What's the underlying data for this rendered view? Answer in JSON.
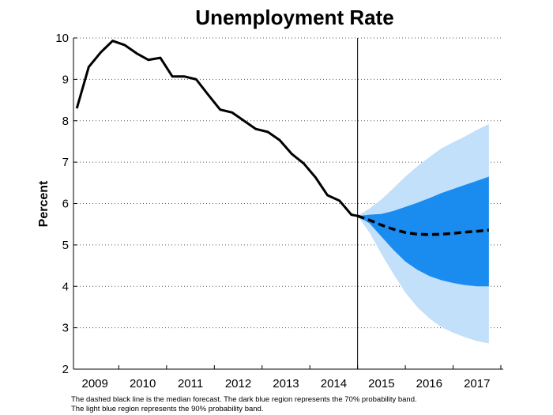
{
  "chart_data": {
    "type": "line",
    "title": "Unemployment Rate",
    "xlabel": "",
    "ylabel": "Percent",
    "xlim": [
      2008.55,
      2017.55
    ],
    "ylim": [
      2,
      10
    ],
    "yticks": [
      2,
      3,
      4,
      5,
      6,
      7,
      8,
      9,
      10
    ],
    "xtick_labels": [
      "2009",
      "2010",
      "2011",
      "2012",
      "2013",
      "2014",
      "2015",
      "2016",
      "2017"
    ],
    "xtick_positions": [
      2009,
      2010,
      2011,
      2012,
      2013,
      2014,
      2015,
      2016,
      2017
    ],
    "forecast_start": 2014.5,
    "grid": "horizontal dotted",
    "colors": {
      "history": "#000000",
      "band70": "#1a8cf0",
      "band90": "#c2e0fa"
    },
    "history": {
      "x": [
        2008.62,
        2008.87,
        2009.12,
        2009.37,
        2009.62,
        2009.87,
        2010.12,
        2010.37,
        2010.62,
        2010.87,
        2011.12,
        2011.37,
        2011.62,
        2011.87,
        2012.12,
        2012.37,
        2012.62,
        2012.87,
        2013.12,
        2013.37,
        2013.62,
        2013.87,
        2014.12,
        2014.37,
        2014.5
      ],
      "y": [
        8.3,
        9.3,
        9.65,
        9.93,
        9.83,
        9.63,
        9.47,
        9.52,
        9.07,
        9.07,
        9.0,
        8.63,
        8.27,
        8.2,
        8.0,
        7.8,
        7.73,
        7.53,
        7.2,
        6.97,
        6.63,
        6.2,
        6.07,
        5.73,
        5.7
      ]
    },
    "median_forecast": {
      "x": [
        2014.5,
        2014.75,
        2015.0,
        2015.25,
        2015.5,
        2015.75,
        2016.0,
        2016.25,
        2016.5,
        2016.75,
        2017.0,
        2017.25
      ],
      "y": [
        5.7,
        5.6,
        5.48,
        5.38,
        5.3,
        5.26,
        5.25,
        5.26,
        5.28,
        5.31,
        5.33,
        5.36
      ]
    },
    "band_70": {
      "x": [
        2014.5,
        2014.75,
        2015.0,
        2015.25,
        2015.5,
        2015.75,
        2016.0,
        2016.25,
        2016.5,
        2016.75,
        2017.0,
        2017.25
      ],
      "low": [
        5.7,
        5.52,
        5.2,
        4.88,
        4.6,
        4.4,
        4.25,
        4.15,
        4.08,
        4.03,
        4.0,
        4.0
      ],
      "high": [
        5.7,
        5.73,
        5.75,
        5.82,
        5.92,
        6.02,
        6.13,
        6.25,
        6.35,
        6.45,
        6.55,
        6.65
      ]
    },
    "band_90": {
      "x": [
        2014.5,
        2014.75,
        2015.0,
        2015.25,
        2015.5,
        2015.75,
        2016.0,
        2016.25,
        2016.5,
        2016.75,
        2017.0,
        2017.25
      ],
      "low": [
        5.7,
        5.3,
        4.78,
        4.3,
        3.85,
        3.5,
        3.23,
        3.02,
        2.88,
        2.77,
        2.68,
        2.62
      ],
      "high": [
        5.7,
        5.88,
        6.1,
        6.37,
        6.65,
        6.9,
        7.12,
        7.33,
        7.48,
        7.62,
        7.78,
        7.92
      ]
    }
  },
  "notes": {
    "line1": "The dashed black line is the median forecast. The dark blue region represents the 70% probability band.",
    "line2": "The light blue region represents the 90% probability band."
  }
}
